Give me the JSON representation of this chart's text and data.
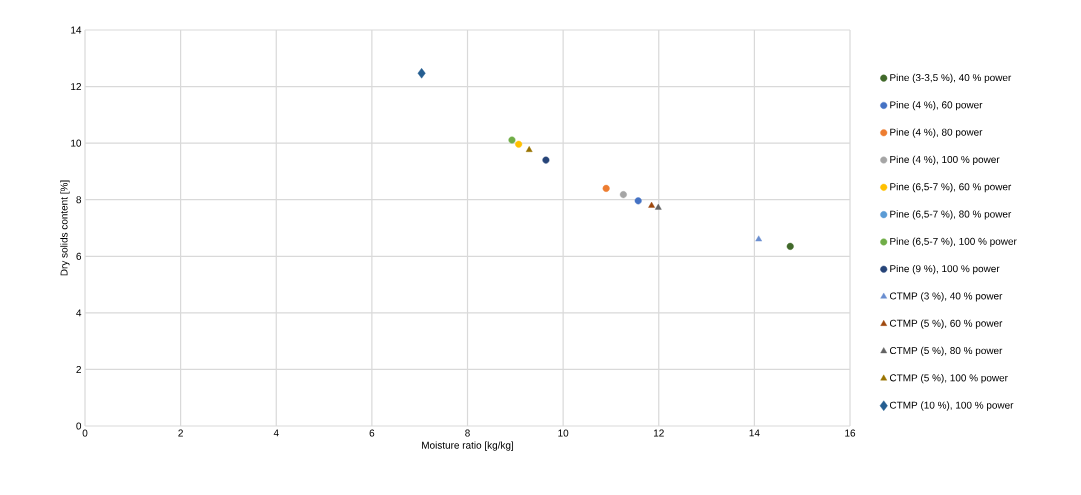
{
  "chart_data": {
    "type": "scatter",
    "xlabel": "Moisture ratio [kg/kg]",
    "ylabel": "Dry solids content [%]",
    "xlim": [
      0,
      16
    ],
    "xticks": [
      0,
      2,
      4,
      6,
      8,
      10,
      12,
      14,
      16
    ],
    "ylim": [
      0,
      14
    ],
    "yticks": [
      0,
      2,
      4,
      6,
      8,
      10,
      12,
      14
    ],
    "grid": true,
    "legend": "right",
    "series": [
      {
        "name": "Pine (3-3,5 %), 40 % power",
        "color": "#41692a",
        "marker": "circle",
        "x": [
          14.75
        ],
        "values": [
          6.35
        ]
      },
      {
        "name": "Pine (4 %), 60 power",
        "color": "#4472c4",
        "marker": "circle",
        "x": [
          11.57
        ],
        "values": [
          7.96
        ]
      },
      {
        "name": "Pine (4 %), 80 power",
        "color": "#ed7d31",
        "marker": "circle",
        "x": [
          10.9
        ],
        "values": [
          8.4
        ]
      },
      {
        "name": "Pine (4 %), 100 % power",
        "color": "#a5a5a5",
        "marker": "circle",
        "x": [
          11.26
        ],
        "values": [
          8.18
        ]
      },
      {
        "name": "Pine (6,5-7 %), 60 % power",
        "color": "#ffc000",
        "marker": "circle",
        "x": [
          9.07
        ],
        "values": [
          9.96
        ]
      },
      {
        "name": "Pine (6,5-7 %), 80 % power",
        "color": "#5b9bd5",
        "marker": "circle",
        "x": [
          null
        ],
        "values": [
          null
        ]
      },
      {
        "name": "Pine (6,5-7 %), 100 % power",
        "color": "#70ad47",
        "marker": "circle",
        "x": [
          8.93
        ],
        "values": [
          10.11
        ]
      },
      {
        "name": "Pine (9 %), 100 % power",
        "color": "#264478",
        "marker": "circle",
        "x": [
          9.64
        ],
        "values": [
          9.4
        ]
      },
      {
        "name": "CTMP (3 %), 40 % power",
        "color": "#698ed0",
        "marker": "triangle",
        "x": [
          14.09
        ],
        "values": [
          6.6
        ]
      },
      {
        "name": "CTMP (5 %), 60 % power",
        "color": "#9e480e",
        "marker": "triangle",
        "x": [
          11.85
        ],
        "values": [
          7.79
        ]
      },
      {
        "name": "CTMP (5 %), 80 % power",
        "color": "#636363",
        "marker": "triangle",
        "x": [
          11.99
        ],
        "values": [
          7.72
        ]
      },
      {
        "name": "CTMP (5 %), 100 % power",
        "color": "#997300",
        "marker": "triangle",
        "x": [
          9.29
        ],
        "values": [
          9.76
        ]
      },
      {
        "name": "CTMP (10 %), 100 % power",
        "color": "#255e91",
        "marker": "diamond",
        "x": [
          7.04
        ],
        "values": [
          12.47
        ]
      }
    ]
  }
}
